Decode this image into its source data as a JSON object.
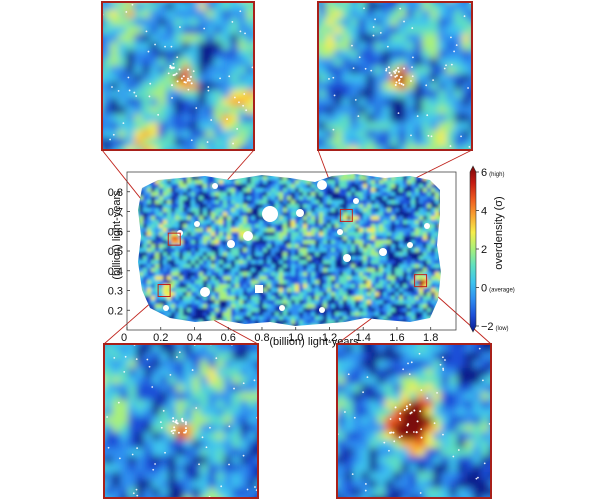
{
  "chart_data": {
    "type": "heatmap",
    "xlabel": "(billion) light-years",
    "ylabel": "(billion) light-years",
    "x_ticks": [
      "0",
      "0.2",
      "0.4",
      "0.6",
      "0.8",
      "1.0",
      "1.2",
      "1.4",
      "1.6",
      "1.8"
    ],
    "x_tick_values": [
      0,
      0.2,
      0.4,
      0.6,
      0.8,
      1.0,
      1.2,
      1.4,
      1.6,
      1.8
    ],
    "y_ticks": [
      "0.2",
      "0.3",
      "0.4",
      "0.5",
      "0.6",
      "0.7",
      "0.8"
    ],
    "y_tick_values": [
      0.2,
      0.3,
      0.4,
      0.5,
      0.6,
      0.7,
      0.8
    ],
    "xlim": [
      0,
      1.95
    ],
    "ylim": [
      0.1,
      0.9
    ],
    "colorbar": {
      "label": "overdensity (σ)",
      "range": [
        -2,
        6
      ],
      "ticks": [
        {
          "value": 6,
          "label": "6",
          "note": "(high)"
        },
        {
          "value": 4,
          "label": "4",
          "note": ""
        },
        {
          "value": 2,
          "label": "2",
          "note": ""
        },
        {
          "value": 0,
          "label": "0",
          "note": "(average)"
        },
        {
          "value": -2,
          "label": "−2",
          "note": "(low)"
        }
      ]
    },
    "colors": [
      "#0a1a8c",
      "#1d4fd8",
      "#2f8ff0",
      "#3cc4ee",
      "#5fe0c0",
      "#a8f07a",
      "#f6ee4a",
      "#f9a531",
      "#ee5a1f",
      "#c41a12",
      "#7a0808"
    ],
    "highlighted_regions": [
      {
        "x": 0.28,
        "y": 0.56,
        "peak": 5.5
      },
      {
        "x": 1.3,
        "y": 0.68,
        "peak": 5
      },
      {
        "x": 0.22,
        "y": 0.3,
        "peak": 3.5
      },
      {
        "x": 1.74,
        "y": 0.35,
        "peak": 6
      }
    ]
  }
}
